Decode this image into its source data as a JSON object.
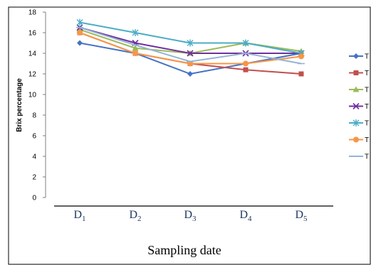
{
  "chart_data": {
    "type": "line",
    "xlabel": "Sampling date",
    "ylabel": "Brix percentage",
    "ylim": [
      0,
      18
    ],
    "yticks": [
      0,
      2,
      4,
      6,
      8,
      10,
      12,
      14,
      16,
      18
    ],
    "categories": [
      {
        "base": "D",
        "sub": "1"
      },
      {
        "base": "D",
        "sub": "2"
      },
      {
        "base": "D",
        "sub": "3"
      },
      {
        "base": "D",
        "sub": "4"
      },
      {
        "base": "D",
        "sub": "5"
      }
    ],
    "grid": false,
    "legend_position": "right",
    "series": [
      {
        "name": "T",
        "color": "#4472c4",
        "marker": "diamond",
        "values": [
          15.0,
          14.0,
          12.0,
          13.0,
          14.0
        ]
      },
      {
        "name": "T",
        "color": "#c0504d",
        "marker": "square",
        "values": [
          16.0,
          14.0,
          13.0,
          12.4,
          12.0
        ]
      },
      {
        "name": "T",
        "color": "#9bbb59",
        "marker": "triangle",
        "values": [
          16.3,
          14.5,
          14.0,
          15.0,
          14.2
        ]
      },
      {
        "name": "T",
        "color": "#7030a0",
        "marker": "x",
        "values": [
          16.5,
          15.0,
          14.0,
          14.0,
          14.0
        ]
      },
      {
        "name": "T",
        "color": "#4bacc6",
        "marker": "star",
        "values": [
          17.0,
          16.0,
          15.0,
          15.0,
          14.0
        ]
      },
      {
        "name": "T",
        "color": "#f79646",
        "marker": "circle",
        "values": [
          16.0,
          14.0,
          13.0,
          13.0,
          13.7
        ]
      },
      {
        "name": "T",
        "color": "#95b3d7",
        "marker": "plus",
        "values": [
          16.5,
          14.8,
          13.2,
          14.0,
          13.0
        ]
      }
    ]
  }
}
